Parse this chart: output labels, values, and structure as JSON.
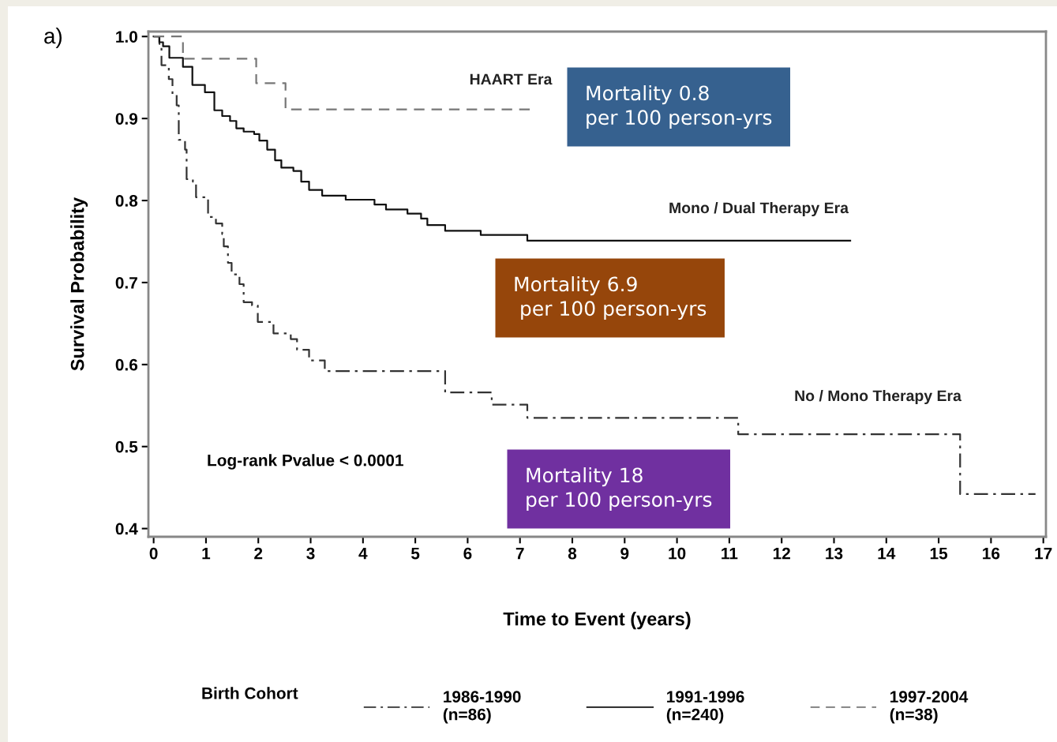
{
  "chart_data": {
    "type": "step",
    "xlabel": "Time to Event (years)",
    "ylabel": "Survival Probability",
    "legend_title": "Birth Cohort",
    "xlim": [
      -0.1,
      17.05
    ],
    "ylim": [
      0.39,
      1.006
    ],
    "xticks": [
      0,
      1,
      2,
      3,
      4,
      5,
      6,
      7,
      8,
      9,
      10,
      11,
      12,
      13,
      14,
      15,
      16,
      17
    ],
    "yticks": [
      0.4,
      0.5,
      0.6,
      0.7,
      0.8,
      0.9,
      {
        "value": 1,
        "label": "1.0"
      }
    ],
    "grid": false,
    "legend": "bottom",
    "marker": "none",
    "series": [
      {
        "name": "1986-1990\n(n=86)",
        "color": "#333333",
        "line_style": "dashdot",
        "x": [
          0,
          0.11,
          0.15,
          0.29,
          0.36,
          0.44,
          0.48,
          0.6,
          0.63,
          0.75,
          0.81,
          1.04,
          1.19,
          1.31,
          1.34,
          1.42,
          1.49,
          1.64,
          1.72,
          1.88,
          1.99,
          2.29,
          2.62,
          2.74,
          2.97,
          3.27,
          5.57,
          6.46,
          7.14,
          11.17,
          15.41,
          16.85
        ],
        "values": [
          1.0,
          0.991,
          0.965,
          0.948,
          0.929,
          0.916,
          0.874,
          0.862,
          0.826,
          0.823,
          0.804,
          0.78,
          0.772,
          0.759,
          0.744,
          0.724,
          0.71,
          0.698,
          0.676,
          0.672,
          0.652,
          0.638,
          0.631,
          0.618,
          0.605,
          0.592,
          0.566,
          0.551,
          0.535,
          0.515,
          0.442,
          0.442
        ]
      },
      {
        "name": "1991-1996\n(n=240)",
        "color": "#111111",
        "line_style": "solid",
        "x": [
          0,
          0.11,
          0.18,
          0.3,
          0.56,
          0.74,
          0.98,
          1.16,
          1.31,
          1.46,
          1.58,
          1.72,
          1.92,
          2.02,
          2.17,
          2.32,
          2.44,
          2.67,
          2.82,
          2.97,
          3.22,
          3.67,
          4.22,
          4.44,
          4.85,
          5.11,
          5.23,
          5.57,
          6.25,
          7.14,
          13.31
        ],
        "values": [
          1.0,
          0.993,
          0.988,
          0.974,
          0.963,
          0.941,
          0.932,
          0.91,
          0.903,
          0.897,
          0.888,
          0.884,
          0.881,
          0.873,
          0.862,
          0.849,
          0.84,
          0.836,
          0.823,
          0.813,
          0.806,
          0.801,
          0.795,
          0.789,
          0.784,
          0.778,
          0.77,
          0.763,
          0.758,
          0.751,
          0.751
        ]
      },
      {
        "name": "1997-2004\n(n=38)",
        "color": "#777777",
        "line_style": "dashed",
        "x": [
          0,
          0.56,
          1.96,
          2.52,
          7.2
        ],
        "values": [
          1.0,
          0.973,
          0.943,
          0.911,
          0.911
        ]
      }
    ],
    "annotations": [
      "a)",
      "Log-rank Pvalue < 0.0001",
      "HAART Era",
      "Mono / Dual Therapy Era",
      "No / Mono Therapy Era",
      "Mortality 0.8\nper 100 person-yrs",
      "Mortality 6.9\n per 100 person-yrs",
      "Mortality 18\nper 100 person-yrs"
    ]
  }
}
